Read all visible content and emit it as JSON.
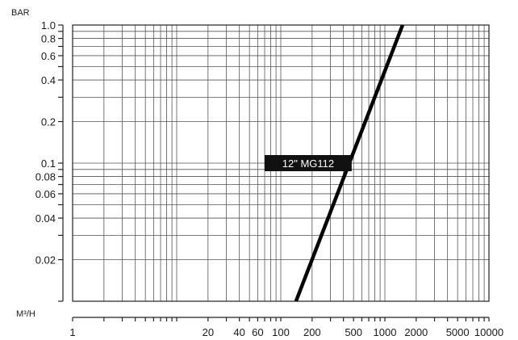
{
  "chart_data": {
    "type": "line",
    "title": "",
    "ylabel": "BAR",
    "xlabel": "M³/H",
    "x_scale": "log",
    "y_scale": "log",
    "xlim": [
      1,
      10000
    ],
    "ylim": [
      0.01,
      1.0
    ],
    "grid": true,
    "x_ticks": [
      {
        "value": 1,
        "label": "1"
      },
      {
        "value": 20,
        "label": "20"
      },
      {
        "value": 40,
        "label": "40"
      },
      {
        "value": 60,
        "label": "60"
      },
      {
        "value": 100,
        "label": "100"
      },
      {
        "value": 200,
        "label": "200"
      },
      {
        "value": 500,
        "label": "500"
      },
      {
        "value": 1000,
        "label": "1000"
      },
      {
        "value": 2000,
        "label": "2000"
      },
      {
        "value": 5000,
        "label": "5000"
      },
      {
        "value": 10000,
        "label": "10000"
      }
    ],
    "y_ticks": [
      {
        "value": 1.0,
        "label": "1.0"
      },
      {
        "value": 0.8,
        "label": "0.8"
      },
      {
        "value": 0.6,
        "label": "0.6"
      },
      {
        "value": 0.4,
        "label": "0.4"
      },
      {
        "value": 0.2,
        "label": "0.2"
      },
      {
        "value": 0.1,
        "label": "0.1"
      },
      {
        "value": 0.08,
        "label": "0.08"
      },
      {
        "value": 0.06,
        "label": "0.06"
      },
      {
        "value": 0.04,
        "label": "0.04"
      },
      {
        "value": 0.02,
        "label": "0.02"
      }
    ],
    "x_grid": [
      1,
      2,
      3,
      4,
      5,
      6,
      7,
      8,
      9,
      10,
      20,
      30,
      40,
      50,
      60,
      70,
      80,
      90,
      100,
      200,
      300,
      400,
      500,
      600,
      700,
      800,
      900,
      1000,
      2000,
      3000,
      4000,
      5000,
      6000,
      7000,
      8000,
      9000,
      10000
    ],
    "y_grid": [
      0.01,
      0.02,
      0.03,
      0.04,
      0.05,
      0.06,
      0.07,
      0.08,
      0.09,
      0.1,
      0.2,
      0.3,
      0.4,
      0.5,
      0.6,
      0.7,
      0.8,
      0.9,
      1.0
    ],
    "series": [
      {
        "name": "12\" MG112",
        "x": [
          140,
          1480
        ],
        "y": [
          0.01,
          1.0
        ]
      }
    ],
    "annotation": {
      "text": "12\" MG112",
      "x_from": 70,
      "x_to": 480,
      "y": 0.1
    }
  }
}
